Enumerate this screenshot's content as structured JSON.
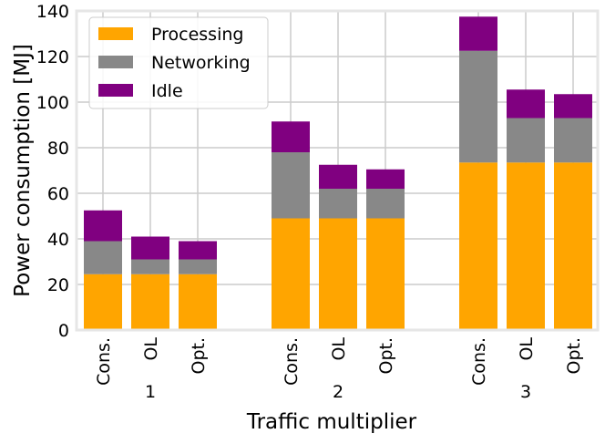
{
  "chart_data": {
    "type": "bar",
    "stacked": true,
    "title": "",
    "xlabel": "Traffic multiplier",
    "ylabel": "Power consumption [MJ]",
    "ylim": [
      0,
      140
    ],
    "yticks": [
      0,
      20,
      40,
      60,
      80,
      100,
      120,
      140
    ],
    "grid": true,
    "legend_position": "top-left",
    "groups": [
      {
        "label": "1",
        "bars": [
          "Cons.",
          "OL",
          "Opt."
        ]
      },
      {
        "label": "2",
        "bars": [
          "Cons.",
          "OL",
          "Opt."
        ]
      },
      {
        "label": "3",
        "bars": [
          "Cons.",
          "OL",
          "Opt."
        ]
      }
    ],
    "series": [
      {
        "name": "Processing",
        "color": "#ffa500",
        "values": [
          24.5,
          24.5,
          24.5,
          49,
          49,
          49,
          73.5,
          73.5,
          73.5
        ]
      },
      {
        "name": "Networking",
        "color": "#888888",
        "values": [
          14.5,
          6.5,
          6.5,
          29,
          13,
          13,
          49,
          19.5,
          19.5
        ]
      },
      {
        "name": "Idle",
        "color": "#800080",
        "values": [
          13.5,
          10,
          8,
          13.5,
          10.5,
          8.5,
          15,
          12.5,
          10.5
        ]
      }
    ]
  }
}
